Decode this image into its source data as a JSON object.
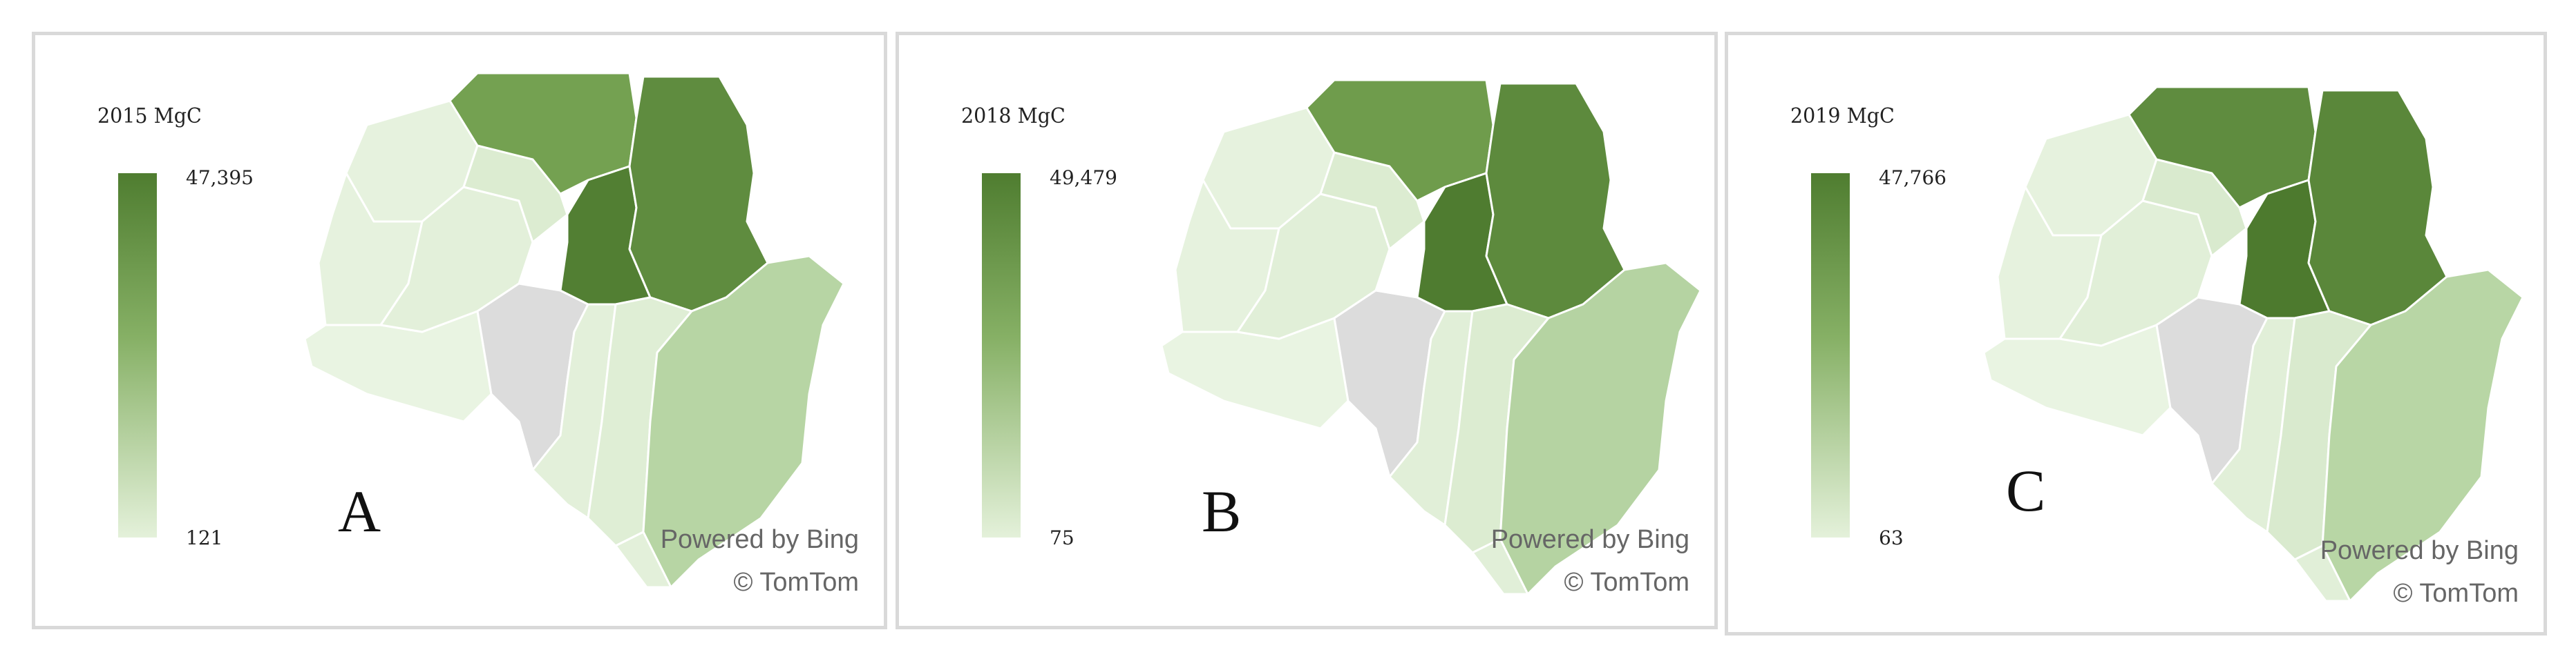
{
  "panels": [
    {
      "letter": "A",
      "legend_title": "2015 MgC",
      "legend_max": "47,395",
      "legend_min": "121",
      "attribution_line1": "Powered by Bing",
      "attribution_line2": "© TomTom",
      "region_colors": {
        "north_west": "#74a151",
        "north_east": "#5f8c3f",
        "center": "#527f33",
        "south_east": "#b7d5a4",
        "west_a": "#e6f2de",
        "west_b": "#e6f2de",
        "west_c": "#e9f4e2",
        "inner_a": "#e3f0da",
        "inner_b": "#dcecd1",
        "south_a": "#e3f0da",
        "south_b": "#dfeed5",
        "south_tip": "#e3f0da",
        "no_data": "#dcdcdc"
      }
    },
    {
      "letter": "B",
      "legend_title": "2018 MgC",
      "legend_max": "49,479",
      "legend_min": "75",
      "attribution_line1": "Powered by Bing",
      "attribution_line2": "© TomTom",
      "region_colors": {
        "north_west": "#6f9c4c",
        "north_east": "#5d8a3d",
        "center": "#4f7c30",
        "south_east": "#b5d3a2",
        "west_a": "#e6f2de",
        "west_b": "#e6f2de",
        "west_c": "#e9f4e2",
        "inner_a": "#e1efd8",
        "inner_b": "#dcecd1",
        "south_a": "#e1efd8",
        "south_b": "#dcecd1",
        "south_tip": "#e1efd8",
        "no_data": "#dcdcdc"
      }
    },
    {
      "letter": "C",
      "legend_title": "2019 MgC",
      "legend_max": "47,766",
      "legend_min": "63",
      "attribution_line1": "Powered by Bing",
      "attribution_line2": "© TomTom",
      "region_colors": {
        "north_west": "#5f8c3f",
        "north_east": "#5a873a",
        "center": "#4d7a2e",
        "south_east": "#b8d6a5",
        "west_a": "#e6f2de",
        "west_b": "#e6f2de",
        "west_c": "#e9f4e2",
        "inner_a": "#e1efd8",
        "inner_b": "#d9eace",
        "south_a": "#e1efd8",
        "south_b": "#d9eace",
        "south_tip": "#e1efd8",
        "no_data": "#dcdcdc"
      }
    }
  ]
}
